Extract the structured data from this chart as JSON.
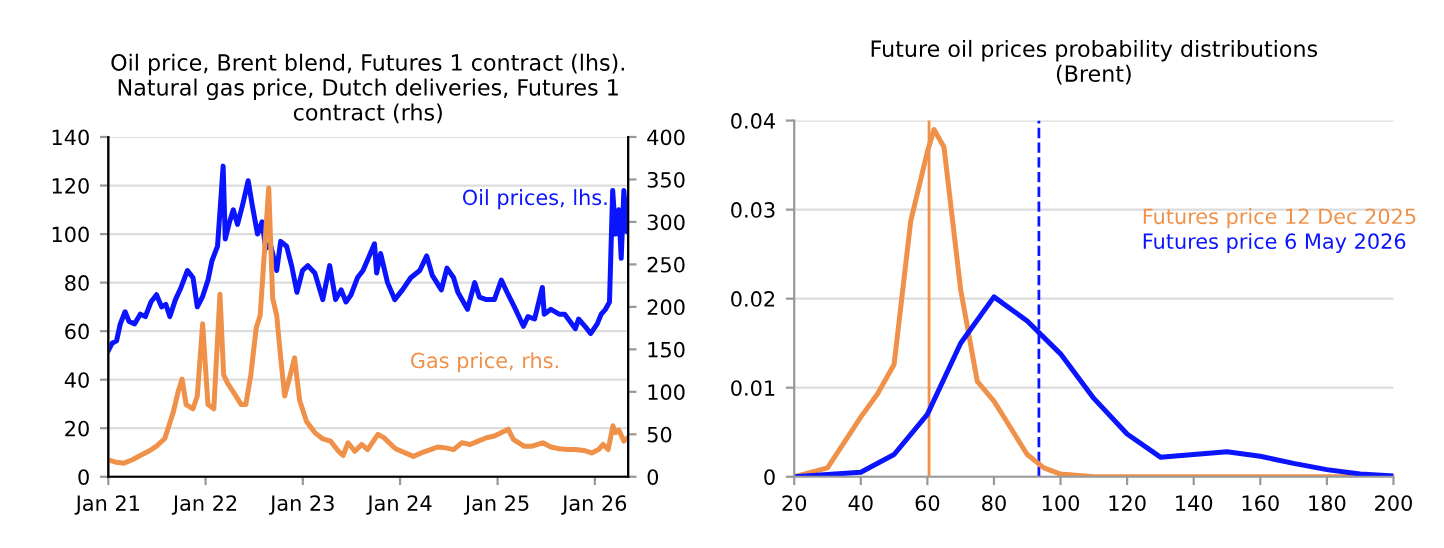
{
  "chart_data": [
    {
      "type": "line",
      "title": "Oil price, Brent blend, Futures 1 contract (lhs).\nNatural gas price, Dutch deliveries, Futures 1\ncontract (rhs)",
      "grid": "y",
      "legend": false,
      "marker": "none",
      "line_style": "solid",
      "xlim": [
        "2021-01-01",
        "2026-05-06"
      ],
      "xticks": [
        {
          "value": "2021-01-01",
          "label": "Jan 21"
        },
        {
          "value": "2022-01-01",
          "label": "Jan 22"
        },
        {
          "value": "2023-01-01",
          "label": "Jan 23"
        },
        {
          "value": "2024-01-01",
          "label": "Jan 24"
        },
        {
          "value": "2025-01-01",
          "label": "Jan 25"
        },
        {
          "value": "2026-01-01",
          "label": "Jan 26"
        }
      ],
      "ylim": [
        0,
        140
      ],
      "yticks": [
        0,
        20,
        40,
        60,
        80,
        100,
        120,
        140
      ],
      "y2lim": [
        0,
        400
      ],
      "y2ticks": [
        0,
        50,
        100,
        150,
        200,
        250,
        300,
        350,
        400
      ],
      "series": [
        {
          "name": "Oil prices, lhs.",
          "color": "#0a14ff",
          "x": [
            "2021-01-01",
            "2021-01-15",
            "2021-02-01",
            "2021-02-15",
            "2021-03-05",
            "2021-03-20",
            "2021-04-10",
            "2021-05-01",
            "2021-05-20",
            "2021-06-10",
            "2021-07-01",
            "2021-07-20",
            "2021-08-05",
            "2021-08-20",
            "2021-09-10",
            "2021-10-01",
            "2021-10-25",
            "2021-11-15",
            "2021-12-01",
            "2021-12-20",
            "2022-01-10",
            "2022-01-25",
            "2022-02-15",
            "2022-03-08",
            "2022-03-16",
            "2022-04-01",
            "2022-04-15",
            "2022-05-01",
            "2022-05-20",
            "2022-06-10",
            "2022-06-25",
            "2022-07-15",
            "2022-08-01",
            "2022-08-15",
            "2022-09-01",
            "2022-09-25",
            "2022-10-10",
            "2022-11-01",
            "2022-11-20",
            "2022-12-10",
            "2022-12-31",
            "2023-01-20",
            "2023-02-15",
            "2023-03-17",
            "2023-04-12",
            "2023-05-04",
            "2023-05-25",
            "2023-06-12",
            "2023-07-01",
            "2023-07-25",
            "2023-08-15",
            "2023-09-27",
            "2023-10-05",
            "2023-10-20",
            "2023-11-15",
            "2023-12-12",
            "2024-01-10",
            "2024-02-10",
            "2024-03-15",
            "2024-04-10",
            "2024-05-01",
            "2024-06-04",
            "2024-06-25",
            "2024-07-20",
            "2024-08-05",
            "2024-09-10",
            "2024-10-07",
            "2024-10-25",
            "2024-11-20",
            "2024-12-20",
            "2025-01-15",
            "2025-02-10",
            "2025-03-05",
            "2025-04-08",
            "2025-04-25",
            "2025-05-20",
            "2025-06-18",
            "2025-06-25",
            "2025-07-20",
            "2025-08-20",
            "2025-09-10",
            "2025-10-20",
            "2025-11-01",
            "2025-11-25",
            "2025-12-16",
            "2026-01-10",
            "2026-01-25",
            "2026-02-10",
            "2026-02-25",
            "2026-03-09",
            "2026-03-20",
            "2026-04-01",
            "2026-04-10",
            "2026-04-20",
            "2026-05-01",
            "2026-05-05"
          ],
          "values": [
            52,
            55,
            56,
            63,
            68,
            64,
            63,
            67,
            66,
            72,
            75,
            70,
            71,
            66,
            73,
            78,
            85,
            82,
            70,
            74,
            81,
            89,
            95,
            128,
            98,
            105,
            110,
            104,
            112,
            122,
            112,
            100,
            105,
            94,
            96,
            85,
            97,
            95,
            87,
            76,
            85,
            87,
            84,
            73,
            87,
            73,
            77,
            72,
            75,
            82,
            85,
            96,
            84,
            92,
            80,
            73,
            77,
            82,
            85,
            91,
            83,
            77,
            86,
            82,
            76,
            69,
            80,
            74,
            73,
            73,
            81,
            75,
            70,
            62,
            66,
            65,
            78,
            67,
            69,
            67,
            67,
            61,
            65,
            62,
            59,
            63,
            67,
            69,
            72,
            118,
            100,
            110,
            90,
            118,
            101,
            105
          ]
        },
        {
          "name": "Gas price, rhs.",
          "color": "#f0914a",
          "axis": "y2",
          "x": [
            "2021-01-01",
            "2021-02-01",
            "2021-03-01",
            "2021-04-01",
            "2021-05-01",
            "2021-06-01",
            "2021-07-01",
            "2021-08-01",
            "2021-09-01",
            "2021-09-20",
            "2021-10-05",
            "2021-10-20",
            "2021-11-15",
            "2021-12-01",
            "2021-12-21",
            "2022-01-10",
            "2022-02-01",
            "2022-02-24",
            "2022-03-10",
            "2022-03-25",
            "2022-04-15",
            "2022-05-15",
            "2022-06-01",
            "2022-06-20",
            "2022-07-10",
            "2022-07-25",
            "2022-08-26",
            "2022-09-10",
            "2022-09-25",
            "2022-10-10",
            "2022-10-25",
            "2022-11-15",
            "2022-12-01",
            "2022-12-20",
            "2023-01-15",
            "2023-02-15",
            "2023-03-15",
            "2023-04-15",
            "2023-05-15",
            "2023-06-01",
            "2023-06-20",
            "2023-07-15",
            "2023-08-10",
            "2023-09-01",
            "2023-10-10",
            "2023-11-01",
            "2023-12-15",
            "2024-02-20",
            "2024-03-20",
            "2024-04-25",
            "2024-05-20",
            "2024-06-20",
            "2024-07-20",
            "2024-08-20",
            "2024-09-20",
            "2024-10-20",
            "2024-11-20",
            "2024-12-20",
            "2025-02-10",
            "2025-03-01",
            "2025-04-10",
            "2025-05-10",
            "2025-06-20",
            "2025-07-20",
            "2025-08-20",
            "2025-09-20",
            "2025-10-20",
            "2025-11-20",
            "2025-12-20",
            "2026-01-15",
            "2026-02-01",
            "2026-02-20",
            "2026-03-10",
            "2026-03-20",
            "2026-04-01",
            "2026-04-20",
            "2026-05-05"
          ],
          "values": [
            20,
            17,
            16,
            20,
            25,
            30,
            36,
            45,
            75,
            100,
            115,
            85,
            80,
            95,
            180,
            85,
            80,
            215,
            120,
            110,
            100,
            85,
            85,
            120,
            175,
            190,
            340,
            210,
            190,
            140,
            95,
            120,
            140,
            90,
            65,
            52,
            45,
            42,
            30,
            25,
            40,
            30,
            38,
            32,
            50,
            46,
            33,
            24,
            28,
            32,
            35,
            34,
            32,
            40,
            38,
            42,
            46,
            48,
            56,
            44,
            36,
            36,
            40,
            35,
            33,
            32,
            32,
            31,
            28,
            32,
            38,
            32,
            60,
            52,
            55,
            42,
            46
          ]
        }
      ]
    },
    {
      "type": "line",
      "title": "Future oil prices probability distributions\n(Brent)",
      "grid": "y",
      "legend": false,
      "marker": "none",
      "line_style": "solid",
      "xlim": [
        20,
        200
      ],
      "xticks": [
        20,
        40,
        60,
        80,
        100,
        120,
        140,
        160,
        180,
        200
      ],
      "ylim": [
        0,
        0.04
      ],
      "yticks": [
        0,
        0.01,
        0.02,
        0.03,
        0.04
      ],
      "ref_lines": [
        {
          "axis": "x",
          "value": 60.5,
          "color": "#f0914a",
          "line_style": "solid"
        },
        {
          "axis": "x",
          "value": 93.5,
          "color": "#0a14ff",
          "line_style": "dashed"
        }
      ],
      "series": [
        {
          "name": "Futures price 12 Dec 2025",
          "color": "#f0914a",
          "x": [
            20,
            30,
            40,
            45,
            50,
            55,
            60,
            62,
            65,
            70,
            75,
            80,
            85,
            90,
            95,
            100,
            110,
            200
          ],
          "values": [
            0,
            0.001,
            0.0067,
            0.0093,
            0.0126,
            0.0287,
            0.0365,
            0.039,
            0.037,
            0.021,
            0.0107,
            0.0085,
            0.0055,
            0.0025,
            0.001,
            0.0003,
            0,
            0
          ]
        },
        {
          "name": "Futures price 6 May 2026",
          "color": "#0a14ff",
          "x": [
            20,
            40,
            50,
            60,
            70,
            80,
            90,
            100,
            110,
            120,
            130,
            140,
            150,
            160,
            170,
            180,
            190,
            200
          ],
          "values": [
            0,
            0.0005,
            0.0025,
            0.007,
            0.015,
            0.0202,
            0.0175,
            0.0138,
            0.0088,
            0.0048,
            0.0022,
            0.0025,
            0.0028,
            0.0023,
            0.0015,
            0.0008,
            0.0003,
            0.0001
          ]
        }
      ]
    }
  ]
}
